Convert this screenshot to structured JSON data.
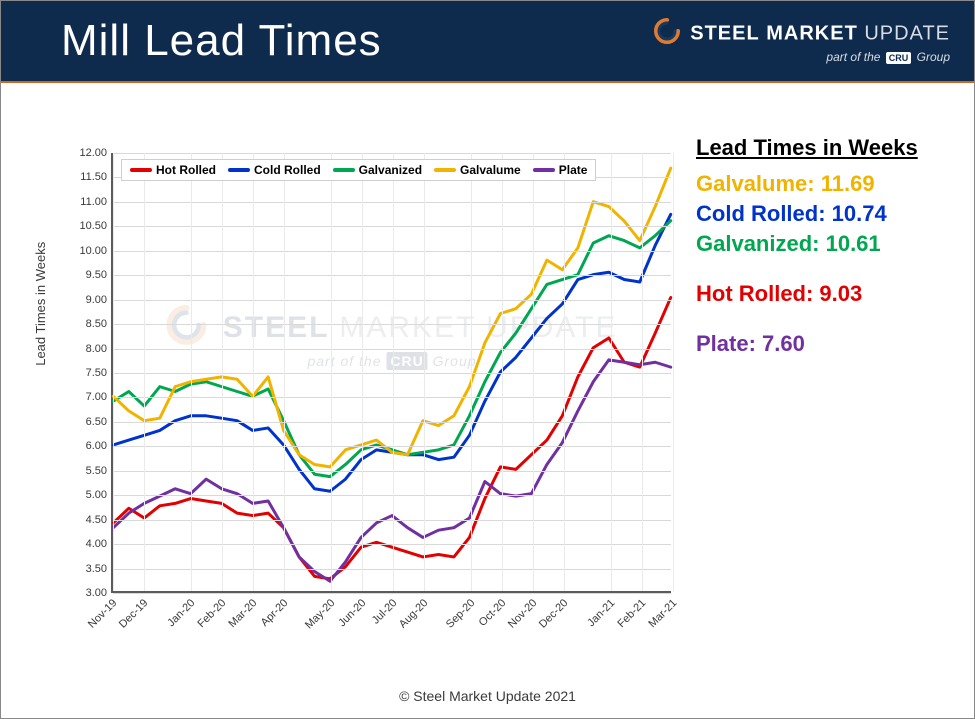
{
  "header": {
    "title": "Mill Lead Times",
    "brand_bold": "STEEL",
    "brand_mid": "MARKET",
    "brand_light": "UPDATE",
    "tagline_prefix": "part of the",
    "tagline_badge": "CRU",
    "tagline_suffix": "Group",
    "bg_color": "#0e2a4d",
    "accent_underline": "#c96a24"
  },
  "chart": {
    "type": "line",
    "yaxis_label": "Lead Times in Weeks",
    "ylim": [
      3.0,
      12.0
    ],
    "ytick_step": 0.5,
    "yticks": [
      "3.00",
      "3.50",
      "4.00",
      "4.50",
      "5.00",
      "5.50",
      "6.00",
      "6.50",
      "7.00",
      "7.50",
      "8.00",
      "8.50",
      "9.00",
      "9.50",
      "10.00",
      "10.50",
      "11.00",
      "11.50",
      "12.00"
    ],
    "x_categories": [
      "Nov-19",
      "Dec-19",
      "Jan-20",
      "Feb-20",
      "Mar-20",
      "Apr-20",
      "May-20",
      "Jun-20",
      "Jul-20",
      "Aug-20",
      "Sep-20",
      "Oct-20",
      "Nov-20",
      "Dec-20",
      "Jan-21",
      "Feb-21",
      "Mar-21"
    ],
    "x_minor_per_major": 2,
    "line_width": 3,
    "grid_color": "#d9d9d9",
    "axis_color": "#5b5b5b",
    "background_color": "#ffffff",
    "label_fontsize": 13,
    "tick_fontsize": 11,
    "series": [
      {
        "name": "Hot Rolled",
        "color": "#e20000",
        "values": [
          4.4,
          4.7,
          4.5,
          4.75,
          4.8,
          4.9,
          4.85,
          4.8,
          4.6,
          4.55,
          4.6,
          4.3,
          3.7,
          3.3,
          3.25,
          3.5,
          3.9,
          4.0,
          3.9,
          3.8,
          3.7,
          3.75,
          3.7,
          4.1,
          4.9,
          5.55,
          5.5,
          5.8,
          6.1,
          6.6,
          7.4,
          8.0,
          8.2,
          7.7,
          7.6,
          8.3,
          9.03
        ]
      },
      {
        "name": "Cold Rolled",
        "color": "#0033cc",
        "values": [
          6.0,
          6.1,
          6.2,
          6.3,
          6.5,
          6.6,
          6.6,
          6.55,
          6.5,
          6.3,
          6.35,
          6.0,
          5.5,
          5.1,
          5.05,
          5.3,
          5.7,
          5.9,
          5.85,
          5.8,
          5.8,
          5.7,
          5.75,
          6.2,
          6.9,
          7.5,
          7.8,
          8.2,
          8.6,
          8.9,
          9.4,
          9.5,
          9.55,
          9.4,
          9.35,
          10.1,
          10.74
        ]
      },
      {
        "name": "Galvanized",
        "color": "#00a650",
        "values": [
          6.9,
          7.1,
          6.8,
          7.2,
          7.1,
          7.25,
          7.3,
          7.2,
          7.1,
          7.0,
          7.15,
          6.5,
          5.8,
          5.4,
          5.35,
          5.6,
          5.9,
          6.0,
          5.9,
          5.8,
          5.85,
          5.9,
          6.0,
          6.6,
          7.3,
          7.9,
          8.3,
          8.8,
          9.3,
          9.4,
          9.5,
          10.15,
          10.3,
          10.2,
          10.05,
          10.3,
          10.61
        ]
      },
      {
        "name": "Galvalume",
        "color": "#f0b400",
        "values": [
          7.0,
          6.7,
          6.5,
          6.55,
          7.2,
          7.3,
          7.35,
          7.4,
          7.35,
          7.0,
          7.4,
          6.3,
          5.8,
          5.6,
          5.55,
          5.9,
          6.0,
          6.1,
          5.85,
          5.8,
          6.5,
          6.4,
          6.6,
          7.2,
          8.1,
          8.7,
          8.8,
          9.1,
          9.8,
          9.6,
          10.05,
          11.0,
          10.9,
          10.6,
          10.2,
          10.9,
          11.69
        ]
      },
      {
        "name": "Plate",
        "color": "#7030a0",
        "values": [
          4.3,
          4.6,
          4.8,
          4.95,
          5.1,
          5.0,
          5.3,
          5.1,
          5.0,
          4.8,
          4.85,
          4.3,
          3.7,
          3.4,
          3.2,
          3.6,
          4.1,
          4.4,
          4.55,
          4.3,
          4.1,
          4.25,
          4.3,
          4.5,
          5.25,
          5.0,
          4.95,
          5.0,
          5.6,
          6.05,
          6.7,
          7.3,
          7.75,
          7.7,
          7.65,
          7.7,
          7.6
        ]
      }
    ],
    "legend_order": [
      "Hot Rolled",
      "Cold Rolled",
      "Galvanized",
      "Galvalume",
      "Plate"
    ]
  },
  "readout": {
    "title": "Lead Times in Weeks",
    "rows": [
      {
        "label": "Galvalume",
        "value": "11.69",
        "color": "#f0b400"
      },
      {
        "label": "Cold Rolled",
        "value": "10.74",
        "color": "#0033cc"
      },
      {
        "label": "Galvanized",
        "value": "10.61",
        "color": "#00a650"
      },
      {
        "label": "Hot Rolled",
        "value": "9.03",
        "color": "#e20000",
        "gap_before": true
      },
      {
        "label": "Plate",
        "value": "7.60",
        "color": "#7030a0",
        "gap_before": true
      }
    ]
  },
  "watermark": {
    "line1_bold": "STEEL",
    "line1_rest": "MARKET UPDATE",
    "line2_prefix": "part of the",
    "line2_badge": "CRU",
    "line2_suffix": "Group"
  },
  "footer": {
    "copyright": "© Steel Market Update 2021"
  }
}
